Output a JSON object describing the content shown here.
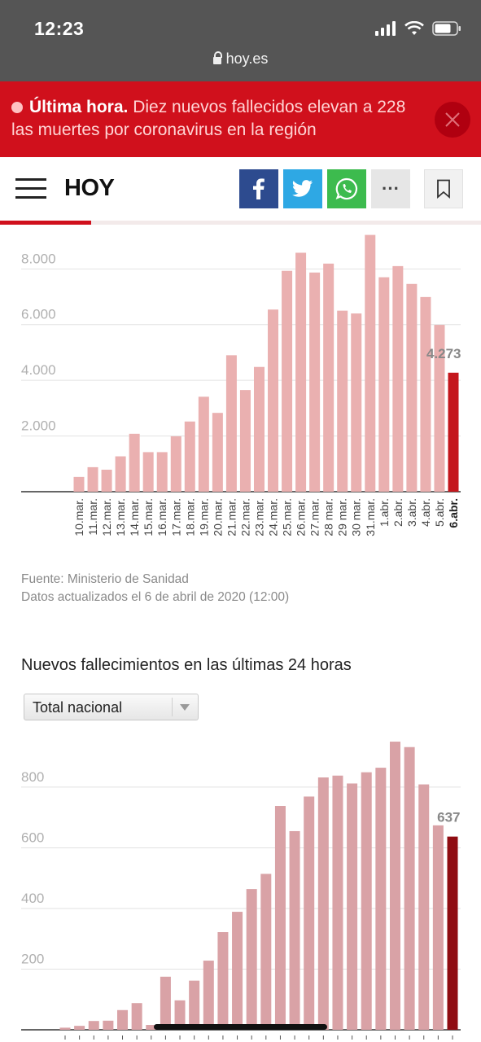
{
  "status_bar": {
    "time": "12:23",
    "url": "hoy.es"
  },
  "breaking": {
    "label": "Última hora.",
    "text": "Diez nuevos fallecidos elevan a 228 las muertes por coronavirus en la región"
  },
  "header": {
    "logo": "HOY",
    "more_label": "···"
  },
  "icons": [
    "lock-icon",
    "close-icon",
    "menu-icon",
    "facebook-icon",
    "twitter-icon",
    "whatsapp-icon",
    "more-icon",
    "bookmark-icon"
  ],
  "colors": {
    "status_bg": "#555555",
    "brand_red": "#d0101c",
    "bar_light": "#eab0b0",
    "bar_highlight": "#c4161c",
    "bar2_light": "#d9a2a6",
    "bar2_highlight": "#8f0c12"
  },
  "progress": {
    "read_fraction": 0.19
  },
  "chart_data": [
    {
      "type": "bar",
      "categories": [
        "10.mar.",
        "11.mar.",
        "12.mar.",
        "13.mar.",
        "14.mar.",
        "15.mar.",
        "16.mar.",
        "17.mar.",
        "18.mar.",
        "19.mar.",
        "20.mar.",
        "21.mar.",
        "22.mar.",
        "23.mar.",
        "24.mar.",
        "25.mar.",
        "26.mar.",
        "27.mar.",
        "28 mar.",
        "29 mar.",
        "30 mar.",
        "31.mar.",
        "1.abr.",
        "2.abr.",
        "3.abr.",
        "4.abr.",
        "5.abr.",
        "6.abr."
      ],
      "values": [
        530,
        880,
        790,
        1270,
        2080,
        1420,
        1420,
        1990,
        2520,
        3410,
        2830,
        4900,
        3650,
        4480,
        6540,
        7930,
        8580,
        7870,
        8190,
        6500,
        6400,
        9220,
        7700,
        8100,
        7460,
        6990,
        5990,
        4273
      ],
      "yticks": [
        "2.000",
        "4.000",
        "6.000",
        "8.000"
      ],
      "ylim": [
        0,
        9400
      ],
      "highlight_label": "4.273",
      "grid": true
    },
    {
      "type": "bar",
      "values": [
        7,
        13,
        29,
        30,
        65,
        88,
        16,
        175,
        97,
        162,
        228,
        322,
        389,
        464,
        514,
        738,
        655,
        769,
        832,
        838,
        812,
        849,
        864,
        950,
        932,
        809,
        674,
        637
      ],
      "yticks": [
        "200",
        "400",
        "600",
        "800"
      ],
      "ylim": [
        0,
        960
      ],
      "highlight_label": "637",
      "grid": true,
      "title": "Nuevos fallecimientos en las últimas 24 horas",
      "selector_value": "Total nacional"
    }
  ],
  "source": {
    "line1": "Fuente: Ministerio de Sanidad",
    "line2": "Datos actualizados el 6 de abril de 2020 (12:00)"
  }
}
